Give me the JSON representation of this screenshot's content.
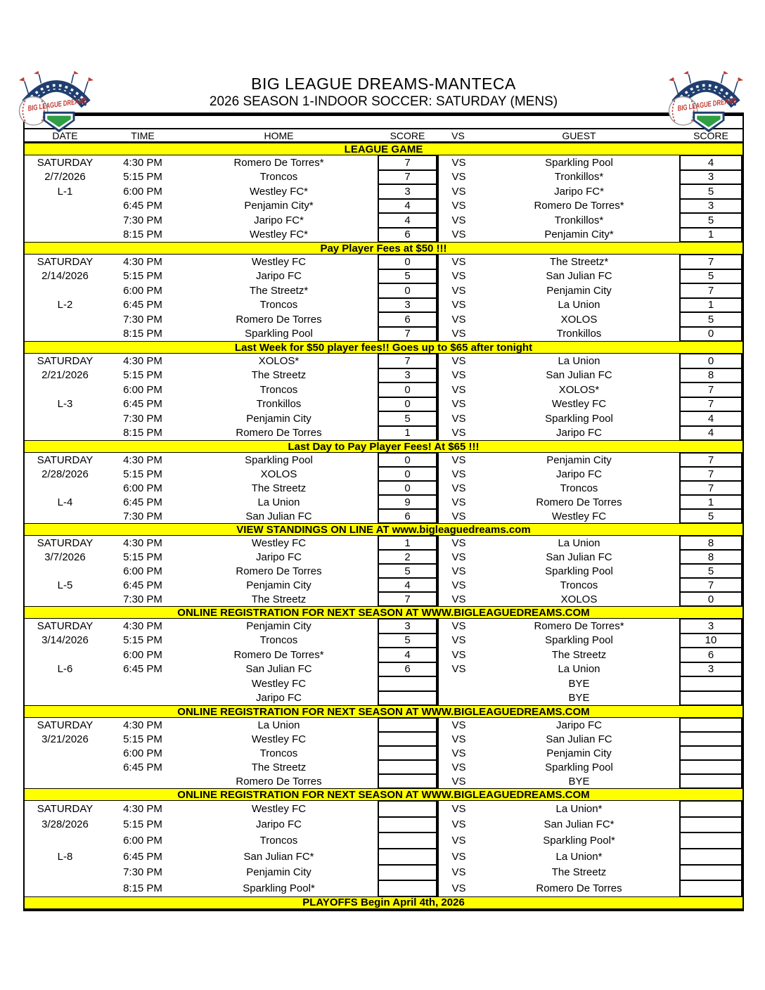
{
  "header": {
    "title": "BIG LEAGUE DREAMS-MANTECA",
    "subtitle": "2026 SEASON 1-INDOOR SOCCER: SATURDAY (MENS)",
    "logo_text": "BIG LEAGUE DREAMS"
  },
  "colors": {
    "banner_yellow": "#FFFF00",
    "logo_navy": "#1f3e70",
    "logo_red": "#bf3a35",
    "logo_green": "#2f9e44"
  },
  "table": {
    "columns": [
      "DATE",
      "TIME",
      "HOME",
      "SCORE",
      "VS",
      "GUEST",
      "SCORE"
    ],
    "league_banner": "LEAGUE GAME",
    "blocks": [
      {
        "day": "SATURDAY",
        "date": "2/7/2026",
        "label": "L-1",
        "label_row": 2,
        "games": [
          {
            "time": "4:30 PM",
            "home": "Romero De Torres*",
            "home_score": "7",
            "vs": "VS",
            "guest": "Sparkling Pool",
            "guest_score": "4"
          },
          {
            "time": "5:15 PM",
            "home": "Troncos",
            "home_score": "7",
            "vs": "VS",
            "guest": "Tronkillos*",
            "guest_score": "3"
          },
          {
            "time": "6:00 PM",
            "home": "Westley FC*",
            "home_score": "3",
            "vs": "VS",
            "guest": "Jaripo FC*",
            "guest_score": "5"
          },
          {
            "time": "6:45 PM",
            "home": "Penjamin City*",
            "home_score": "4",
            "vs": "VS",
            "guest": "Romero De Torres*",
            "guest_score": "3"
          },
          {
            "time": "7:30 PM",
            "home": "Jaripo FC*",
            "home_score": "4",
            "vs": "VS",
            "guest": "Tronkillos*",
            "guest_score": "5"
          },
          {
            "time": "8:15 PM",
            "home": "Westley FC*",
            "home_score": "6",
            "vs": "VS",
            "guest": "Penjamin City*",
            "guest_score": "1"
          }
        ],
        "footer": "Pay Player Fees at $50 !!!"
      },
      {
        "day": "SATURDAY",
        "date": "2/14/2026",
        "label": "L-2",
        "label_row": 3,
        "games": [
          {
            "time": "4:30 PM",
            "home": "Westley FC",
            "home_score": "0",
            "vs": "VS",
            "guest": "The Streetz*",
            "guest_score": "7"
          },
          {
            "time": "5:15 PM",
            "home": "Jaripo FC",
            "home_score": "5",
            "vs": "VS",
            "guest": "San Julian FC",
            "guest_score": "5"
          },
          {
            "time": "6:00 PM",
            "home": "The Streetz*",
            "home_score": "0",
            "vs": "VS",
            "guest": "Penjamin City",
            "guest_score": "7"
          },
          {
            "time": "6:45 PM",
            "home": "Troncos",
            "home_score": "3",
            "vs": "VS",
            "guest": "La Union",
            "guest_score": "1"
          },
          {
            "time": "7:30 PM",
            "home": "Romero De Torres",
            "home_score": "6",
            "vs": "VS",
            "guest": "XOLOS",
            "guest_score": "5"
          },
          {
            "time": "8:15 PM",
            "home": "Sparkling Pool",
            "home_score": "7",
            "vs": "VS",
            "guest": "Tronkillos",
            "guest_score": "0"
          }
        ],
        "footer": "Last Week for $50 player fees!! Goes up to $65 after tonight"
      },
      {
        "day": "SATURDAY",
        "date": "2/21/2026",
        "label": "L-3",
        "label_row": 3,
        "games": [
          {
            "time": "4:30 PM",
            "home": "XOLOS*",
            "home_score": "7",
            "vs": "VS",
            "guest": "La Union",
            "guest_score": "0"
          },
          {
            "time": "5:15 PM",
            "home": "The Streetz",
            "home_score": "3",
            "vs": "VS",
            "guest": "San Julian FC",
            "guest_score": "8"
          },
          {
            "time": "6:00 PM",
            "home": "Troncos",
            "home_score": "0",
            "vs": "VS",
            "guest": "XOLOS*",
            "guest_score": "7"
          },
          {
            "time": "6:45 PM",
            "home": "Tronkillos",
            "home_score": "0",
            "vs": "VS",
            "guest": "Westley FC",
            "guest_score": "7"
          },
          {
            "time": "7:30 PM",
            "home": "Penjamin City",
            "home_score": "5",
            "vs": "VS",
            "guest": "Sparkling Pool",
            "guest_score": "4"
          },
          {
            "time": "8:15 PM",
            "home": "Romero De Torres",
            "home_score": "1",
            "vs": "VS",
            "guest": "Jaripo FC",
            "guest_score": "4"
          }
        ],
        "footer": "Last Day to Pay Player Fees! At $65 !!!"
      },
      {
        "day": "SATURDAY",
        "date": "2/28/2026",
        "label": "L-4",
        "label_row": 3,
        "games": [
          {
            "time": "4:30 PM",
            "home": "Sparkling Pool",
            "home_score": "0",
            "vs": "VS",
            "guest": "Penjamin City",
            "guest_score": "7"
          },
          {
            "time": "5:15 PM",
            "home": "XOLOS",
            "home_score": "0",
            "vs": "VS",
            "guest": "Jaripo FC",
            "guest_score": "7"
          },
          {
            "time": "6:00 PM",
            "home": "The Streetz",
            "home_score": "0",
            "vs": "VS",
            "guest": "Troncos",
            "guest_score": "7"
          },
          {
            "time": "6:45 PM",
            "home": "La Union",
            "home_score": "9",
            "vs": "VS",
            "guest": "Romero De Torres",
            "guest_score": "1"
          },
          {
            "time": "7:30 PM",
            "home": "San Julian FC",
            "home_score": "6",
            "vs": "VS",
            "guest": "Westley FC",
            "guest_score": "5"
          }
        ],
        "footer": "VIEW STANDINGS ON LINE AT www.bigleaguedreams.com"
      },
      {
        "day": "SATURDAY",
        "date": "3/7/2026",
        "label": "L-5",
        "label_row": 3,
        "games": [
          {
            "time": "4:30 PM",
            "home": "Westley FC",
            "home_score": "1",
            "vs": "VS",
            "guest": "La Union",
            "guest_score": "8"
          },
          {
            "time": "5:15 PM",
            "home": "Jaripo FC",
            "home_score": "2",
            "vs": "VS",
            "guest": "San Julian FC",
            "guest_score": "8"
          },
          {
            "time": "6:00 PM",
            "home": "Romero De Torres",
            "home_score": "5",
            "vs": "VS",
            "guest": "Sparkling Pool",
            "guest_score": "5"
          },
          {
            "time": "6:45 PM",
            "home": "Penjamin City",
            "home_score": "4",
            "vs": "VS",
            "guest": "Troncos",
            "guest_score": "7"
          },
          {
            "time": "7:30 PM",
            "home": "The Streetz",
            "home_score": "7",
            "vs": "VS",
            "guest": "XOLOS",
            "guest_score": "0"
          }
        ],
        "footer": "ONLINE REGISTRATION FOR NEXT SEASON AT WWW.BIGLEAGUEDREAMS.COM"
      },
      {
        "day": "SATURDAY",
        "date": "3/14/2026",
        "label": "L-6",
        "label_row": 3,
        "games": [
          {
            "time": "4:30 PM",
            "home": "Penjamin City",
            "home_score": "3",
            "vs": "VS",
            "guest": "Romero De Torres*",
            "guest_score": "3"
          },
          {
            "time": "5:15 PM",
            "home": "Troncos",
            "home_score": "5",
            "vs": "VS",
            "guest": "Sparkling Pool",
            "guest_score": "10"
          },
          {
            "time": "6:00 PM",
            "home": "Romero De Torres*",
            "home_score": "4",
            "vs": "VS",
            "guest": "The Streetz",
            "guest_score": "6"
          },
          {
            "time": "6:45 PM",
            "home": "San Julian FC",
            "home_score": "6",
            "vs": "VS",
            "guest": "La Union",
            "guest_score": "3"
          },
          {
            "time": "",
            "home": "Westley FC",
            "home_score": "",
            "vs": "",
            "guest": "BYE",
            "guest_score": ""
          },
          {
            "time": "",
            "home": "Jaripo FC",
            "home_score": "",
            "vs": "",
            "guest": "BYE",
            "guest_score": ""
          }
        ],
        "footer": "ONLINE REGISTRATION FOR NEXT SEASON AT WWW.BIGLEAGUEDREAMS.COM"
      },
      {
        "day": "SATURDAY",
        "date": "3/21/2026",
        "label": "",
        "label_row": -1,
        "games": [
          {
            "time": "4:30 PM",
            "home": "La Union",
            "home_score": "",
            "vs": "VS",
            "guest": "Jaripo FC",
            "guest_score": ""
          },
          {
            "time": "5:15 PM",
            "home": "Westley FC",
            "home_score": "",
            "vs": "VS",
            "guest": "San Julian FC",
            "guest_score": ""
          },
          {
            "time": "6:00 PM",
            "home": "Troncos",
            "home_score": "",
            "vs": "VS",
            "guest": "Penjamin City",
            "guest_score": ""
          },
          {
            "time": "6:45 PM",
            "home": "The Streetz",
            "home_score": "",
            "vs": "VS",
            "guest": "Sparkling Pool",
            "guest_score": ""
          },
          {
            "time": "",
            "home": "Romero De Torres",
            "home_score": "",
            "vs": "VS",
            "guest": "BYE",
            "guest_score": ""
          }
        ],
        "footer": "ONLINE REGISTRATION FOR NEXT SEASON AT WWW.BIGLEAGUEDREAMS.COM"
      },
      {
        "day": "SATURDAY",
        "date": "3/28/2026",
        "label": "L-8",
        "label_row": 3,
        "games": [
          {
            "time": "4:30 PM",
            "home": "Westley FC",
            "home_score": "",
            "vs": "VS",
            "guest": "La Union*",
            "guest_score": ""
          },
          {
            "time": "5:15 PM",
            "home": "Jaripo FC",
            "home_score": "",
            "vs": "VS",
            "guest": "San Julian FC*",
            "guest_score": ""
          },
          {
            "time": "6:00 PM",
            "home": "Troncos",
            "home_score": "",
            "vs": "VS",
            "guest": "Sparkling Pool*",
            "guest_score": ""
          },
          {
            "time": "6:45 PM",
            "home": "San Julian FC*",
            "home_score": "",
            "vs": "VS",
            "guest": "La Union*",
            "guest_score": ""
          },
          {
            "time": "7:30 PM",
            "home": "Penjamin City",
            "home_score": "",
            "vs": "VS",
            "guest": "The Streetz",
            "guest_score": ""
          },
          {
            "time": "8:15 PM",
            "home": "Sparkling Pool*",
            "home_score": "",
            "vs": "VS",
            "guest": "Romero De Torres",
            "guest_score": ""
          }
        ],
        "footer": "PLAYOFFS Begin April 4th, 2026"
      }
    ]
  }
}
